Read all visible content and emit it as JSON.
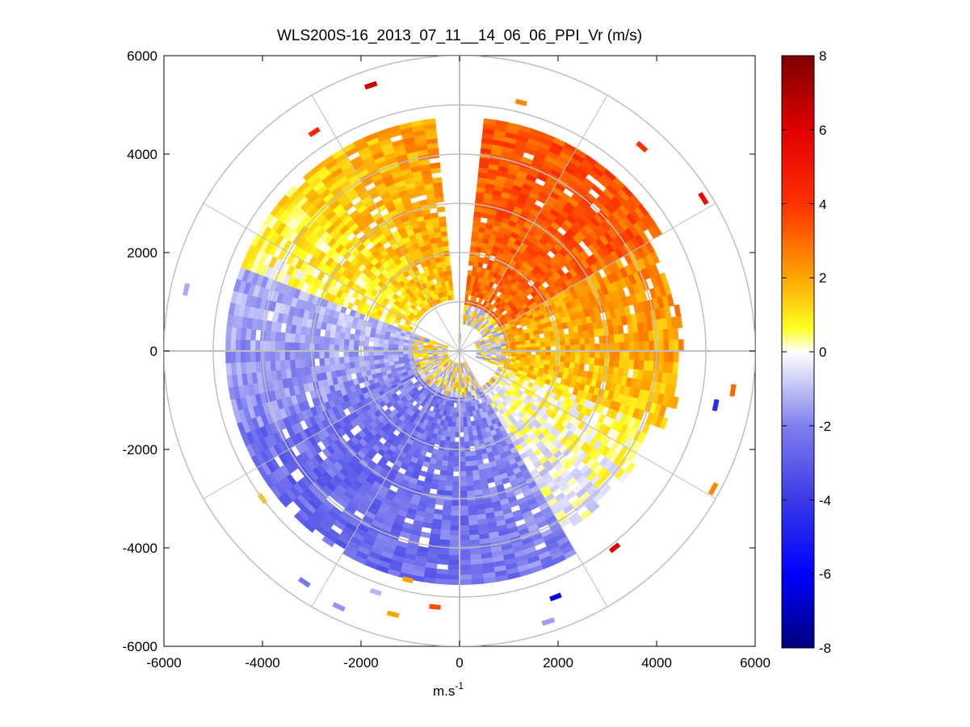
{
  "chart_data": {
    "type": "heatmap",
    "subtype": "polar-ppi",
    "title": "WLS200S-16_2013_07_11__14_06_06_PPI_Vr (m/s)",
    "xlabel": "m.s",
    "xlabel_superscript": "-1",
    "ylabel": "",
    "xlim": [
      -6000,
      6000
    ],
    "ylim": [
      -6000,
      6000
    ],
    "xticks": [
      "-6000",
      "-4000",
      "-2000",
      "0",
      "2000",
      "4000",
      "6000"
    ],
    "yticks": [
      "6000",
      "4000",
      "2000",
      "0",
      "-2000",
      "-4000",
      "-6000"
    ],
    "grid": true,
    "range_rings_m": [
      1000,
      2000,
      3000,
      4000,
      5000,
      6000
    ],
    "azimuth_spokes_deg": [
      0,
      30,
      60,
      90,
      120,
      150,
      180,
      210,
      240,
      270,
      300,
      330
    ],
    "data_max_range_m": 4700,
    "blind_sector_deg": [
      355,
      5
    ],
    "colorbar": {
      "label": "Vr (m/s)",
      "min": -8,
      "max": 8,
      "ticks": [
        "8",
        "6",
        "4",
        "2",
        "0",
        "-2",
        "-4",
        "-6",
        "-8"
      ]
    },
    "field_description": "Radial velocity: positive (toward warm colours, up to ~6 m/s) in the north-east sector, near-zero yellow/white band along the western rim, negative (blue, ~-2 to -3 m/s) across the southern and western sectors",
    "field_sectors": [
      {
        "az_from": 5,
        "az_to": 60,
        "r_from": 500,
        "r_to": 4700,
        "mean_vr": 3.5
      },
      {
        "az_from": 60,
        "az_to": 110,
        "r_from": 300,
        "r_to": 4300,
        "mean_vr": 2.0
      },
      {
        "az_from": 110,
        "az_to": 150,
        "r_from": 800,
        "r_to": 4000,
        "mean_vr": 0.6
      },
      {
        "az_from": 150,
        "az_to": 250,
        "r_from": 200,
        "r_to": 4700,
        "mean_vr": -2.4
      },
      {
        "az_from": 250,
        "az_to": 290,
        "r_from": 200,
        "r_to": 4700,
        "mean_vr": -1.3
      },
      {
        "az_from": 290,
        "az_to": 355,
        "r_from": 1000,
        "r_to": 4700,
        "mean_vr": 1.8
      }
    ],
    "outlier_gates": [
      {
        "x": -1800,
        "y": 5400,
        "vr": 6.5
      },
      {
        "x": 1250,
        "y": 5050,
        "vr": 2.5
      },
      {
        "x": -2950,
        "y": 4450,
        "vr": 4.5
      },
      {
        "x": 3700,
        "y": 4150,
        "vr": 4.0
      },
      {
        "x": 4950,
        "y": 3100,
        "vr": 5.5
      },
      {
        "x": -5550,
        "y": 1250,
        "vr": -1.2
      },
      {
        "x": 5550,
        "y": -800,
        "vr": 3.0
      },
      {
        "x": 5200,
        "y": -1100,
        "vr": -4.5
      },
      {
        "x": 5150,
        "y": -2800,
        "vr": 2.5
      },
      {
        "x": 3150,
        "y": -4000,
        "vr": 6.0
      },
      {
        "x": 1950,
        "y": -5000,
        "vr": -6.5
      },
      {
        "x": 1800,
        "y": -5500,
        "vr": -1.5
      },
      {
        "x": -1050,
        "y": -4650,
        "vr": 2.0
      },
      {
        "x": -500,
        "y": -5200,
        "vr": 3.5
      },
      {
        "x": -1350,
        "y": -5350,
        "vr": 2.0
      },
      {
        "x": -2450,
        "y": -5200,
        "vr": -1.6
      },
      {
        "x": -3150,
        "y": -4700,
        "vr": -2.2
      },
      {
        "x": -4000,
        "y": -3000,
        "vr": 1.5
      },
      {
        "x": -1700,
        "y": -4900,
        "vr": -1.0
      }
    ]
  }
}
